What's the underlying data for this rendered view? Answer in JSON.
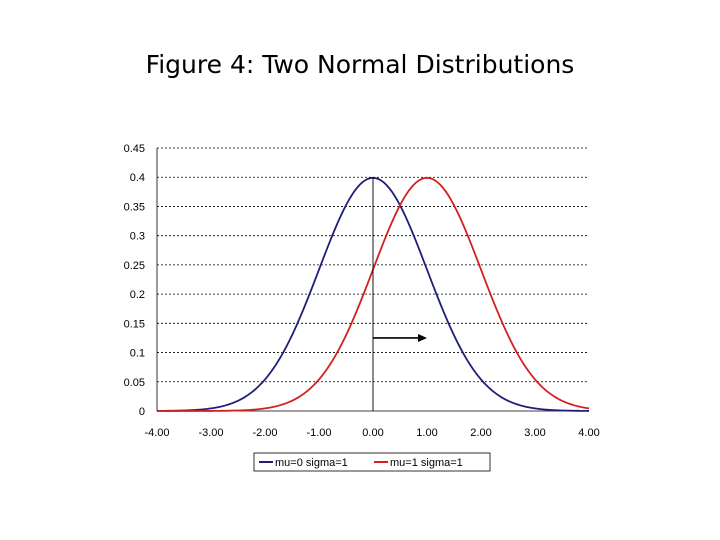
{
  "slide": {
    "title": "Figure 4:  Two Normal Distributions"
  },
  "chart_data": {
    "type": "line",
    "title": "",
    "xlabel": "",
    "ylabel": "",
    "xlim": [
      -4,
      4
    ],
    "ylim": [
      0,
      0.45
    ],
    "x_ticks": [
      "-4.00",
      "-3.00",
      "-2.00",
      "-1.00",
      "0.00",
      "1.00",
      "2.00",
      "3.00",
      "4.00"
    ],
    "y_ticks": [
      "0",
      "0.05",
      "0.1",
      "0.15",
      "0.2",
      "0.25",
      "0.3",
      "0.35",
      "0.4",
      "0.45"
    ],
    "grid": "horizontal dotted",
    "legend_position": "bottom",
    "vertical_line_x": 0,
    "arrow": {
      "from_x": 0,
      "to_x": 1,
      "y": 0.125
    },
    "x": [
      -4,
      -3.5,
      -3,
      -2.5,
      -2,
      -1.5,
      -1,
      -0.5,
      0,
      0.5,
      1,
      1.5,
      2,
      2.5,
      3,
      3.5,
      4
    ],
    "series": [
      {
        "name": "mu=0 sigma=1",
        "color": "#1f1f7a",
        "values": [
          0.0001,
          0.0009,
          0.0044,
          0.0175,
          0.054,
          0.1295,
          0.242,
          0.3521,
          0.3989,
          0.3521,
          0.242,
          0.1295,
          0.054,
          0.0175,
          0.0044,
          0.0009,
          0.0001
        ]
      },
      {
        "name": "mu=1 sigma=1",
        "color": "#d42020",
        "values": [
          0.0,
          0.0,
          0.0001,
          0.0009,
          0.0044,
          0.0175,
          0.054,
          0.1295,
          0.242,
          0.3521,
          0.3989,
          0.3521,
          0.242,
          0.1295,
          0.054,
          0.0175,
          0.0044
        ]
      }
    ]
  }
}
